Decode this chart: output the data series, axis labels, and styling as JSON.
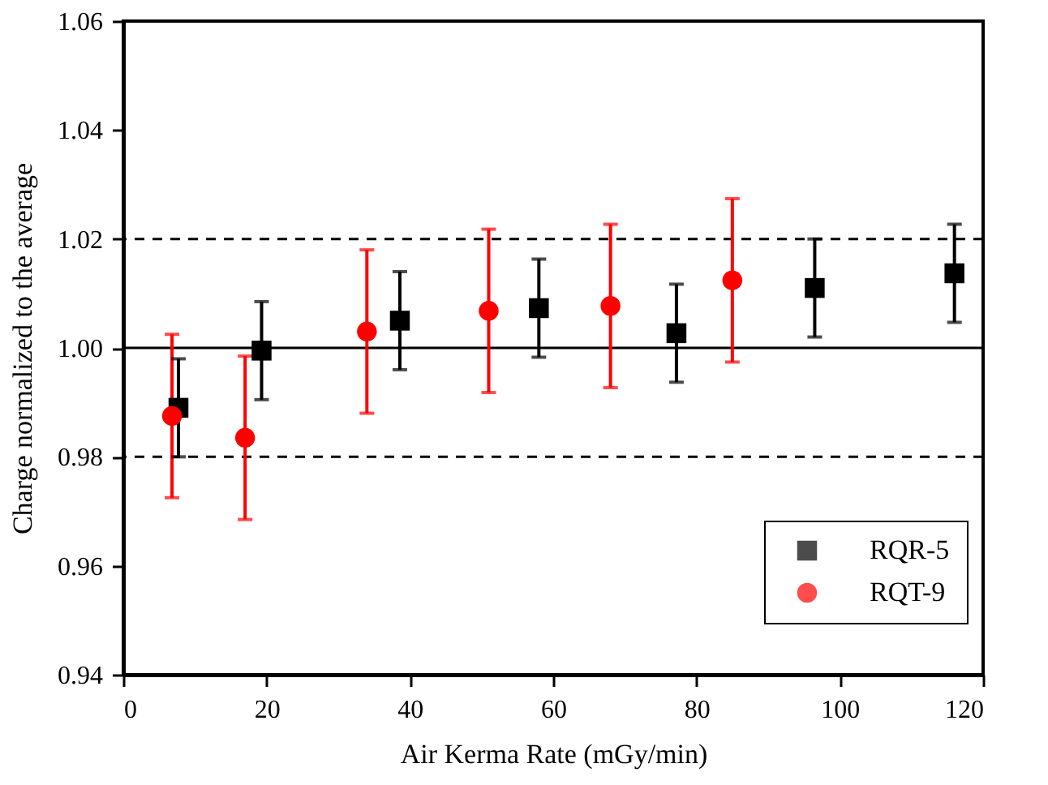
{
  "chart_data": {
    "type": "scatter",
    "xlabel": "Air Kerma Rate (mGy/min)",
    "ylabel": "Charge normalized to the average",
    "xlim": [
      0,
      120
    ],
    "xticks": [
      0,
      20,
      40,
      60,
      80,
      100,
      120
    ],
    "ylim": [
      0.94,
      1.06
    ],
    "yticks": [
      0.94,
      0.96,
      0.98,
      {
        "value": 1.0,
        "label": "1.00"
      },
      1.02,
      1.04,
      1.06
    ],
    "grid": false,
    "legend": "bottom right",
    "series": [
      {
        "name": "RQR-5",
        "color": "#000000",
        "marker": "square",
        "x": [
          7.7,
          19.3,
          38.6,
          58,
          77.2,
          96.5,
          116
        ],
        "values": [
          0.989,
          0.9995,
          1.005,
          1.0073,
          1.0027,
          1.011,
          1.0137
        ],
        "errors": [
          0.009,
          0.009,
          0.009,
          0.009,
          0.009,
          0.009,
          0.009
        ]
      },
      {
        "name": "RQT-9",
        "color": "#ff0000",
        "marker": "circle",
        "x": [
          6.8,
          17,
          34,
          51,
          68,
          85
        ],
        "values": [
          0.9875,
          0.9835,
          1.003,
          1.0068,
          1.0077,
          1.0124
        ],
        "errors": [
          0.015,
          0.015,
          0.015,
          0.015,
          0.015,
          0.015
        ]
      }
    ],
    "ref_lines": [
      {
        "axis": "y",
        "value": 1.0,
        "line_style": "solid",
        "color": "#000000"
      },
      {
        "axis": "y",
        "value": 0.98,
        "line_style": "dashed",
        "color": "#000000"
      },
      {
        "axis": "y",
        "value": 1.02,
        "line_style": "dashed",
        "color": "#000000"
      }
    ]
  }
}
